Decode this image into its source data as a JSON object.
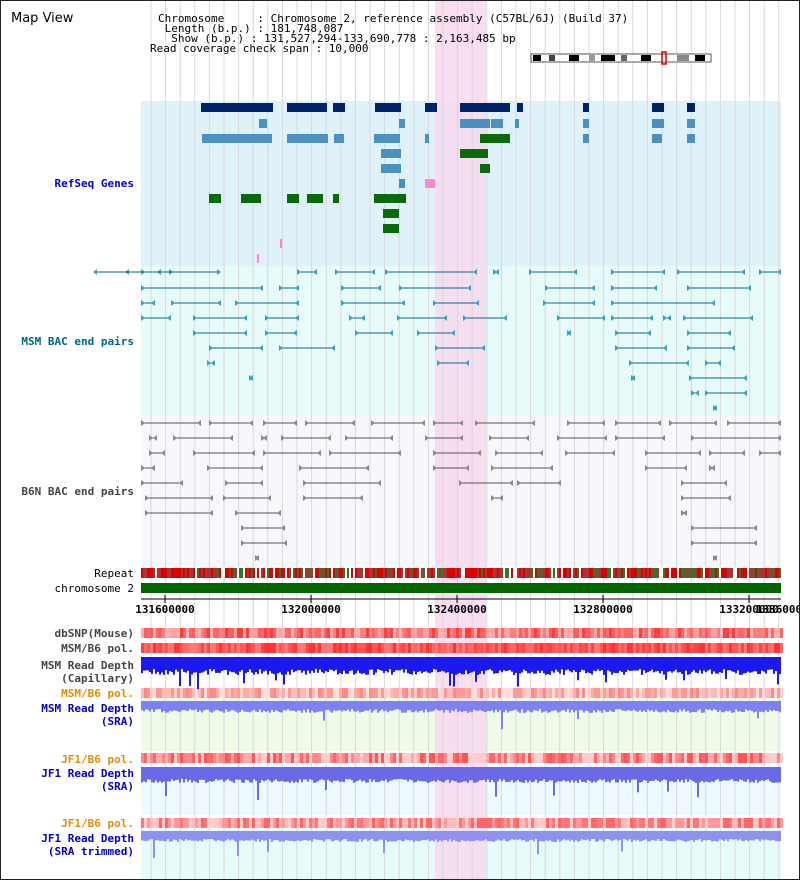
{
  "header": {
    "title": "Map View",
    "info_lines": [
      "Chromosome     : Chromosome 2, reference assembly (C57BL/6J) (Build 37)",
      " Length (b.p.) : 181,748,087",
      "  Show (b.p.) : 131,527,294-133,690,778 : 2,163,485 bp",
      "Read coverage check span : 10,000"
    ]
  },
  "tracks": {
    "refseq": "RefSeq Genes",
    "msm_bac": "MSM BAC end pairs",
    "b6n_bac": "B6N BAC end pairs",
    "repeat": "Repeat",
    "chromosome": "chromosome 2",
    "dbsnp": "dbSNP(Mouse)",
    "msm_b6_pol": "MSM/B6 pol.",
    "msm_depth_cap_1": "MSM Read Depth",
    "msm_depth_cap_2": "(Capillary)",
    "msm_b6_pol_2": "MSM/B6 pol.",
    "msm_depth_sra_1": "MSM Read Depth",
    "msm_depth_sra_2": "(SRA)",
    "jf1_b6_pol": "JF1/B6 pol.",
    "jf1_depth_sra_1": "JF1 Read Depth",
    "jf1_depth_sra_2": "(SRA)",
    "jf1_b6_pol_2": "JF1/B6 pol.",
    "jf1_depth_trim_1": "JF1 Read Depth",
    "jf1_depth_trim_2": "(SRA trimmed)"
  },
  "axis": {
    "ticks": [
      "131600000",
      "132000000",
      "132400000",
      "132800000",
      "133200000",
      "1336000"
    ]
  },
  "colors": {
    "refseq_bg": "#dff2fa",
    "msm_bg": "#e8fbfb",
    "b6n_bg": "#f6f8fb",
    "highlight": "#f8d8ef",
    "refseq_label": "#0000cc",
    "msm_label": "#006688",
    "b6n_label": "#444444",
    "pol_orange": "#e88a00",
    "depth_blue": "#0000cc"
  }
}
